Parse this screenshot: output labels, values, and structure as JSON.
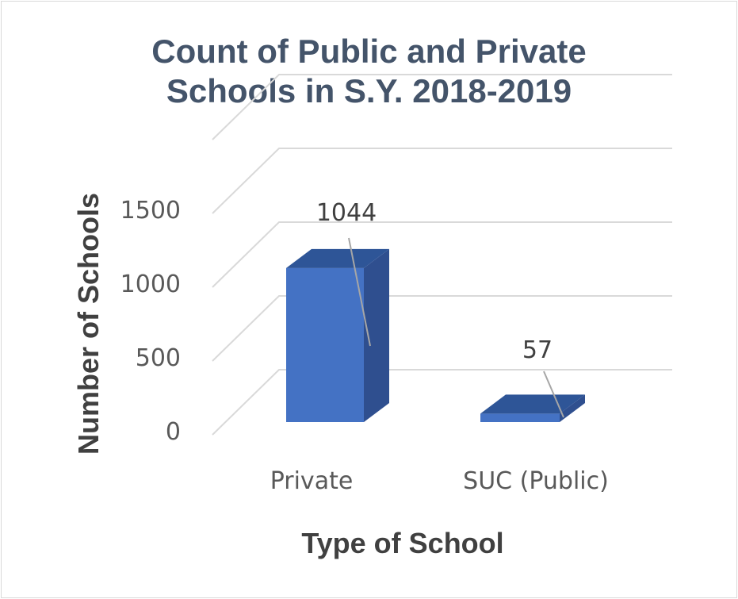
{
  "chart_data": {
    "type": "bar",
    "title_lines": [
      "Count of Public and Private",
      "Schools in S.Y. 2018-2019"
    ],
    "xlabel": "Type of School",
    "ylabel": "Number of Schools",
    "categories": [
      "Private",
      "SUC (Public)"
    ],
    "values": [
      1044,
      57
    ],
    "ylim": [
      0,
      2000
    ],
    "yticks": [
      0,
      500,
      1000,
      1500
    ],
    "grid": true,
    "legend": "none",
    "three_d": true,
    "colors": {
      "bar_front": "#4472c4",
      "bar_side": "#2f4f8f",
      "bar_top": "#2e5597",
      "grid": "#d9d9d9",
      "leader": "#a6a6a6"
    }
  }
}
